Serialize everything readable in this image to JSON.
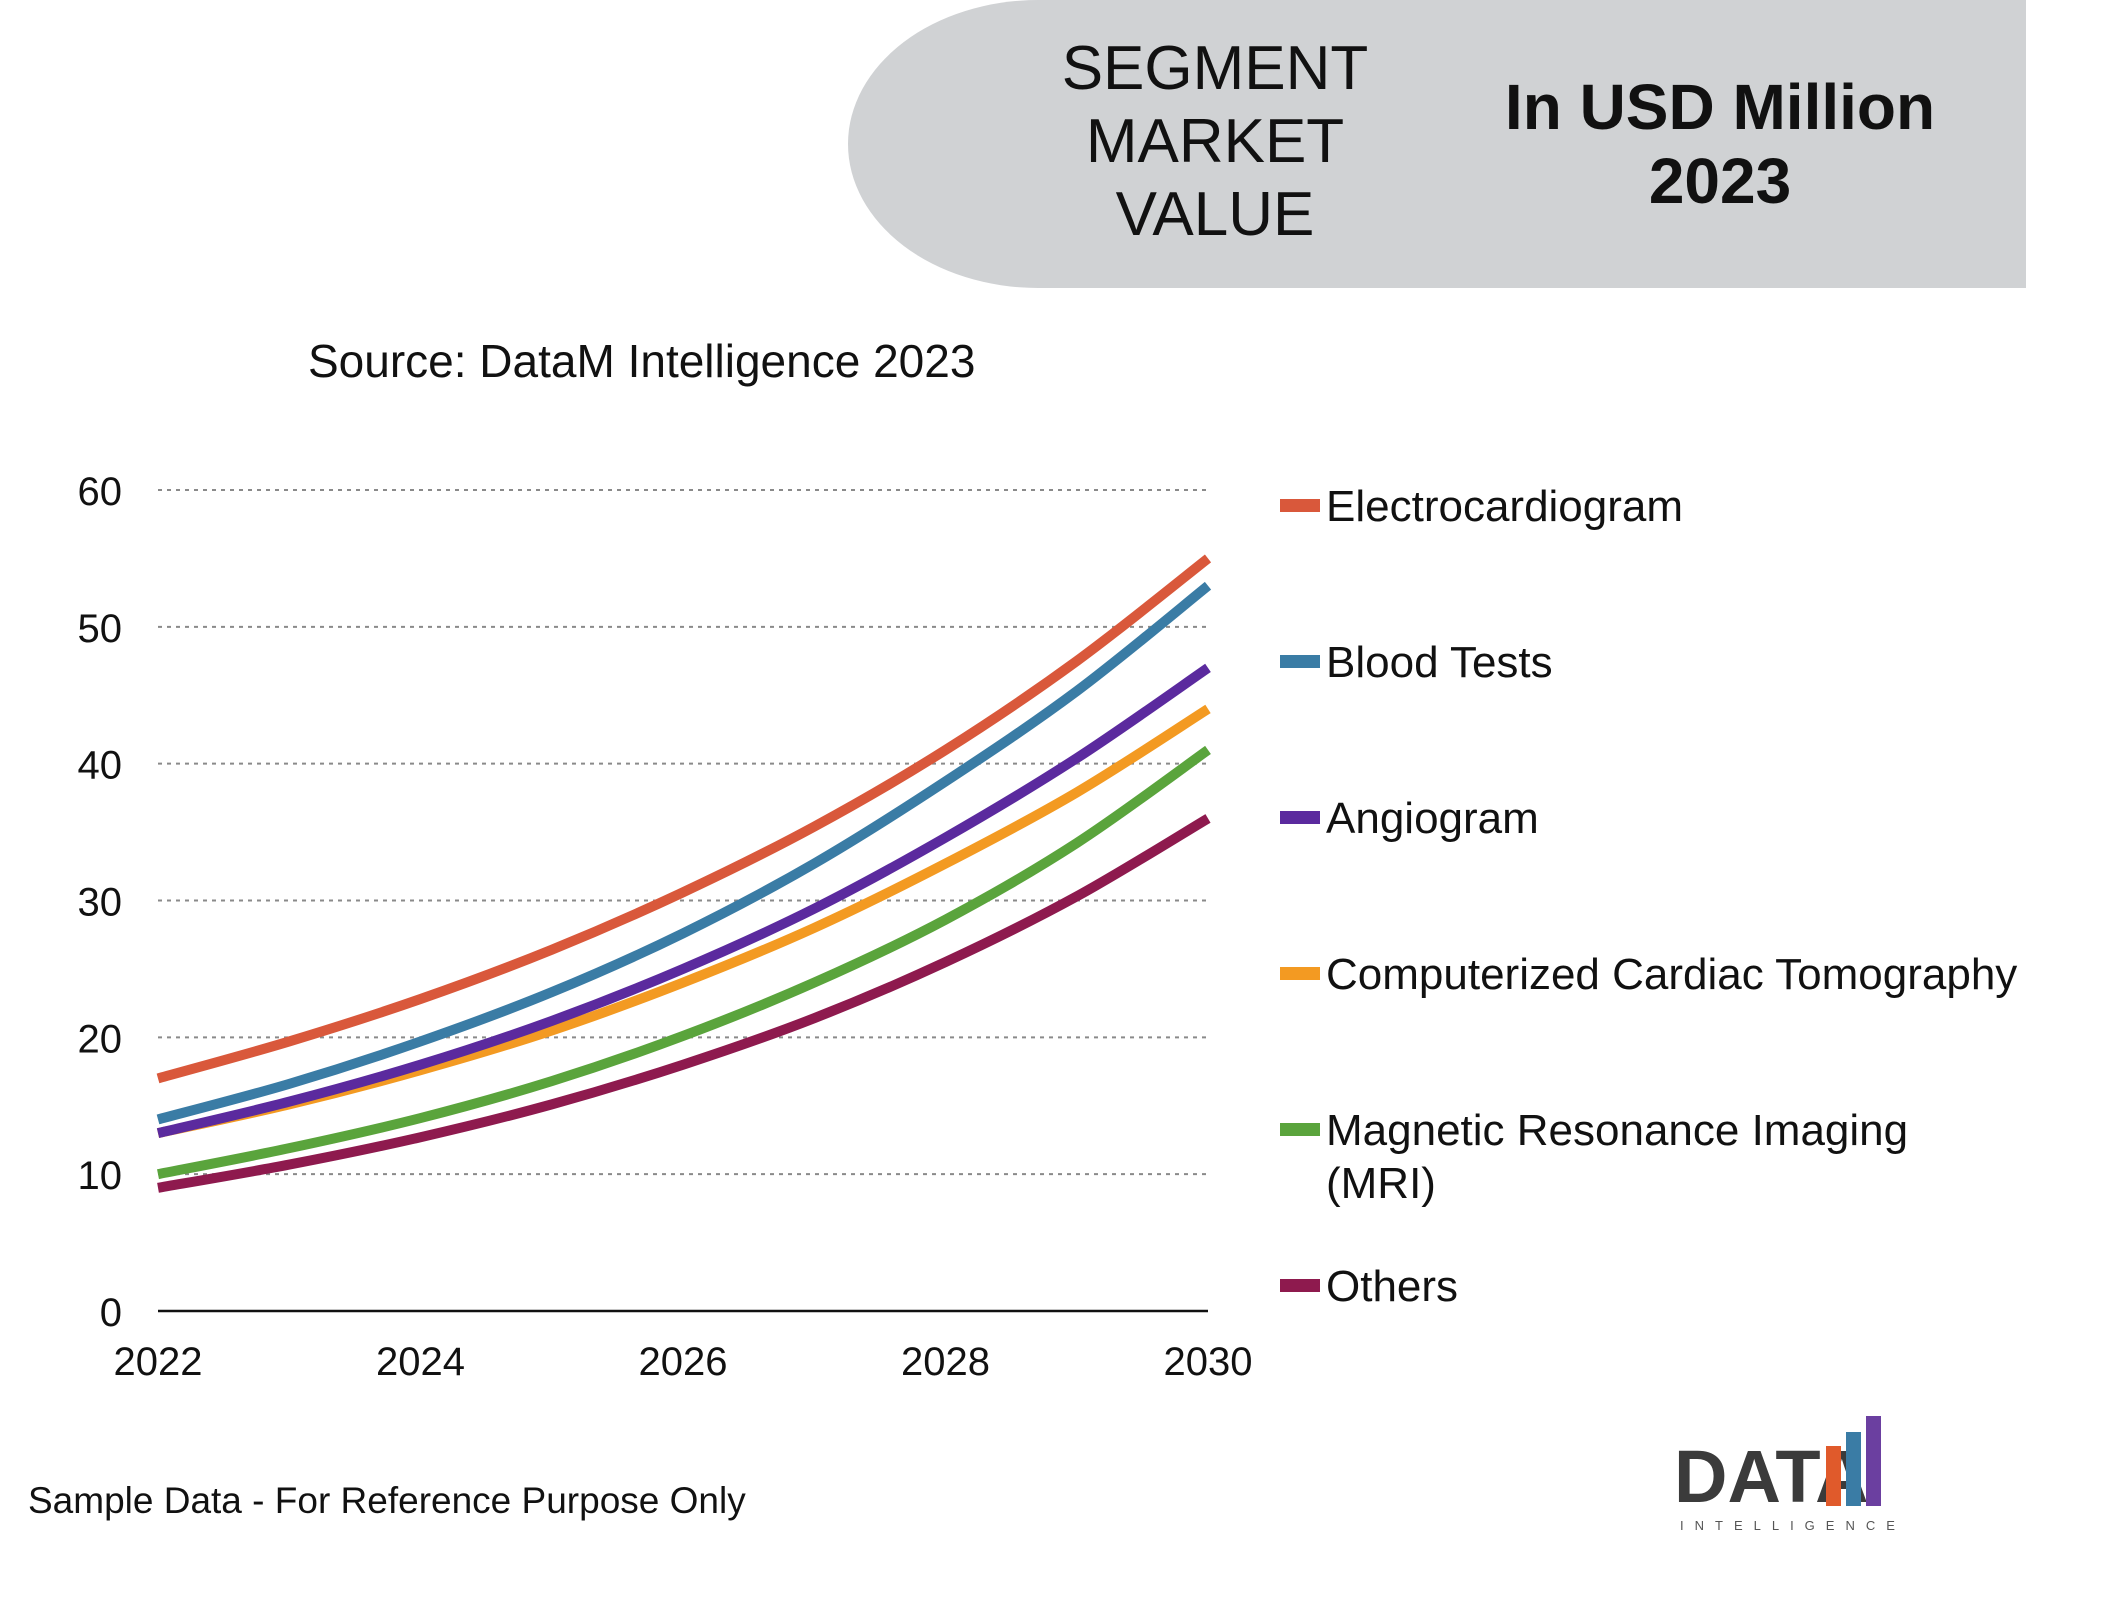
{
  "header": {
    "segment_title": "SEGMENT\nMARKET\nVALUE",
    "unit_line1": "In USD Million",
    "unit_line2": "2023"
  },
  "source": "Source: DataM Intelligence 2023",
  "footer_note": "Sample Data - For Reference Purpose Only",
  "logo": {
    "wordmark": "DATA",
    "tagline": "INTELLIGENCE",
    "bar_colors": [
      "#e05a2b",
      "#3a7ca5",
      "#6b3fa0"
    ]
  },
  "chart_data": {
    "type": "line",
    "title": "",
    "xlabel": "",
    "ylabel": "",
    "x": [
      2022,
      2023,
      2024,
      2025,
      2026,
      2027,
      2028,
      2029,
      2030
    ],
    "x_ticks": [
      "2022",
      "2024",
      "2026",
      "2028",
      "2030"
    ],
    "y_ticks": [
      "0",
      "10",
      "20",
      "30",
      "40",
      "50",
      "60"
    ],
    "xlim": [
      2022,
      2030
    ],
    "ylim": [
      0,
      60
    ],
    "grid": "horizontal dotted",
    "legend_position": "right",
    "series": [
      {
        "name": "Electrocardiogram",
        "color": "#d9583b",
        "values": [
          17,
          19.7,
          22.8,
          26.4,
          30.6,
          35.4,
          41.0,
          47.5,
          55.0
        ]
      },
      {
        "name": "Blood Tests",
        "color": "#3a7ca5",
        "values": [
          14,
          16.6,
          19.7,
          23.3,
          27.6,
          32.7,
          38.7,
          45.3,
          53.0
        ]
      },
      {
        "name": "Angiogram",
        "color": "#5b2a9e",
        "values": [
          13,
          15.3,
          18.0,
          21.2,
          25.0,
          29.4,
          34.6,
          40.4,
          47.0
        ]
      },
      {
        "name": "Computerized Cardiac Tomography",
        "color": "#f39a22",
        "values": [
          13,
          15.1,
          17.6,
          20.5,
          24.0,
          28.0,
          32.7,
          37.9,
          44.0
        ]
      },
      {
        "name": "Magnetic Resonance Imaging (MRI)",
        "color": "#5aa43c",
        "values": [
          10,
          11.9,
          14.1,
          16.8,
          20.1,
          24.0,
          28.6,
          34.2,
          41.0
        ]
      },
      {
        "name": "Others",
        "color": "#8e1a4e",
        "values": [
          9,
          10.7,
          12.7,
          15.1,
          18.0,
          21.4,
          25.5,
          30.3,
          36.0
        ]
      }
    ]
  }
}
